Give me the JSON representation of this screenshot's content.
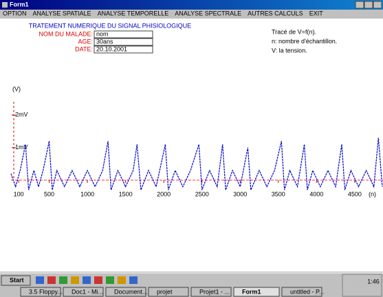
{
  "window": {
    "title": "Form1",
    "menu": [
      "OPTION",
      "ANALYSE SPATIALE",
      "ANALYSE TEMPORELLE",
      "ANALYSE SPECTRALE",
      "AUTRES CALCULS",
      "EXIT"
    ]
  },
  "form": {
    "heading": "TRATEMENT NUMERIQUE DU SIGNAL PHISIOLOGIQUE",
    "fields": [
      {
        "label": "NOM DU MALADE:",
        "value": "nom"
      },
      {
        "label": "AGE:",
        "value": "30ans"
      },
      {
        "label": "DATE:",
        "value": "20.10.2001"
      }
    ],
    "notes": [
      "Tracé de V=f(n).",
      "n: nombre d'échantillon.",
      "V: la tension."
    ]
  },
  "chart_data": {
    "type": "line",
    "y_label": "(V)",
    "x_label": "(n)",
    "xlim": [
      0,
      4870
    ],
    "ylim": [
      -0.8,
      3
    ],
    "xticks": [
      100,
      500,
      1000,
      1500,
      2000,
      2500,
      3000,
      3500,
      4000,
      4500
    ],
    "yticks": [
      {
        "value": 2,
        "label": "2mV"
      },
      {
        "value": 1,
        "label": "1mV"
      }
    ],
    "grid": false,
    "series": [
      {
        "color": "#0000cc",
        "x": [
          0,
          60,
          120,
          190,
          230,
          300,
          360,
          420,
          500,
          540,
          600,
          700,
          800,
          900,
          1000,
          1100,
          1200,
          1270,
          1310,
          1400,
          1500,
          1600,
          1650,
          1700,
          1800,
          1900,
          2020,
          2060,
          2150,
          2250,
          2350,
          2460,
          2500,
          2600,
          2700,
          2770,
          2810,
          2900,
          3000,
          3100,
          3140,
          3250,
          3350,
          3450,
          3540,
          3580,
          3650,
          3750,
          3840,
          3880,
          3950,
          4050,
          4150,
          4250,
          4330,
          4370,
          4450,
          4550,
          4650,
          4750,
          4810,
          4860
        ],
        "values": [
          0.2,
          -0.2,
          0.3,
          1.1,
          -0.3,
          0.3,
          -0.2,
          0.3,
          1.2,
          -0.3,
          0.3,
          -0.2,
          0.3,
          -0.2,
          0.3,
          -0.2,
          0.3,
          1.2,
          -0.3,
          0.3,
          -0.2,
          0.3,
          1.1,
          -0.3,
          0.3,
          -0.2,
          1.1,
          -0.3,
          0.3,
          -0.2,
          0.3,
          1.1,
          -0.3,
          0.3,
          -0.2,
          1.1,
          -0.3,
          0.3,
          -0.2,
          1.0,
          -0.3,
          0.3,
          -0.2,
          0.3,
          1.2,
          -0.3,
          0.3,
          -0.2,
          1.1,
          -0.3,
          0.3,
          -0.2,
          0.3,
          -0.2,
          1.1,
          -0.3,
          0.3,
          -0.2,
          0.3,
          -0.2,
          1.3,
          -0.2
        ]
      }
    ]
  },
  "taskbar": {
    "start": "Start",
    "tasks": [
      "3.5 Floppy...",
      "Doc1 - Mi...",
      "Document...",
      "projet",
      "Projet1 - ...",
      "Form1",
      "untitled - P..."
    ],
    "clock": "1:46"
  }
}
